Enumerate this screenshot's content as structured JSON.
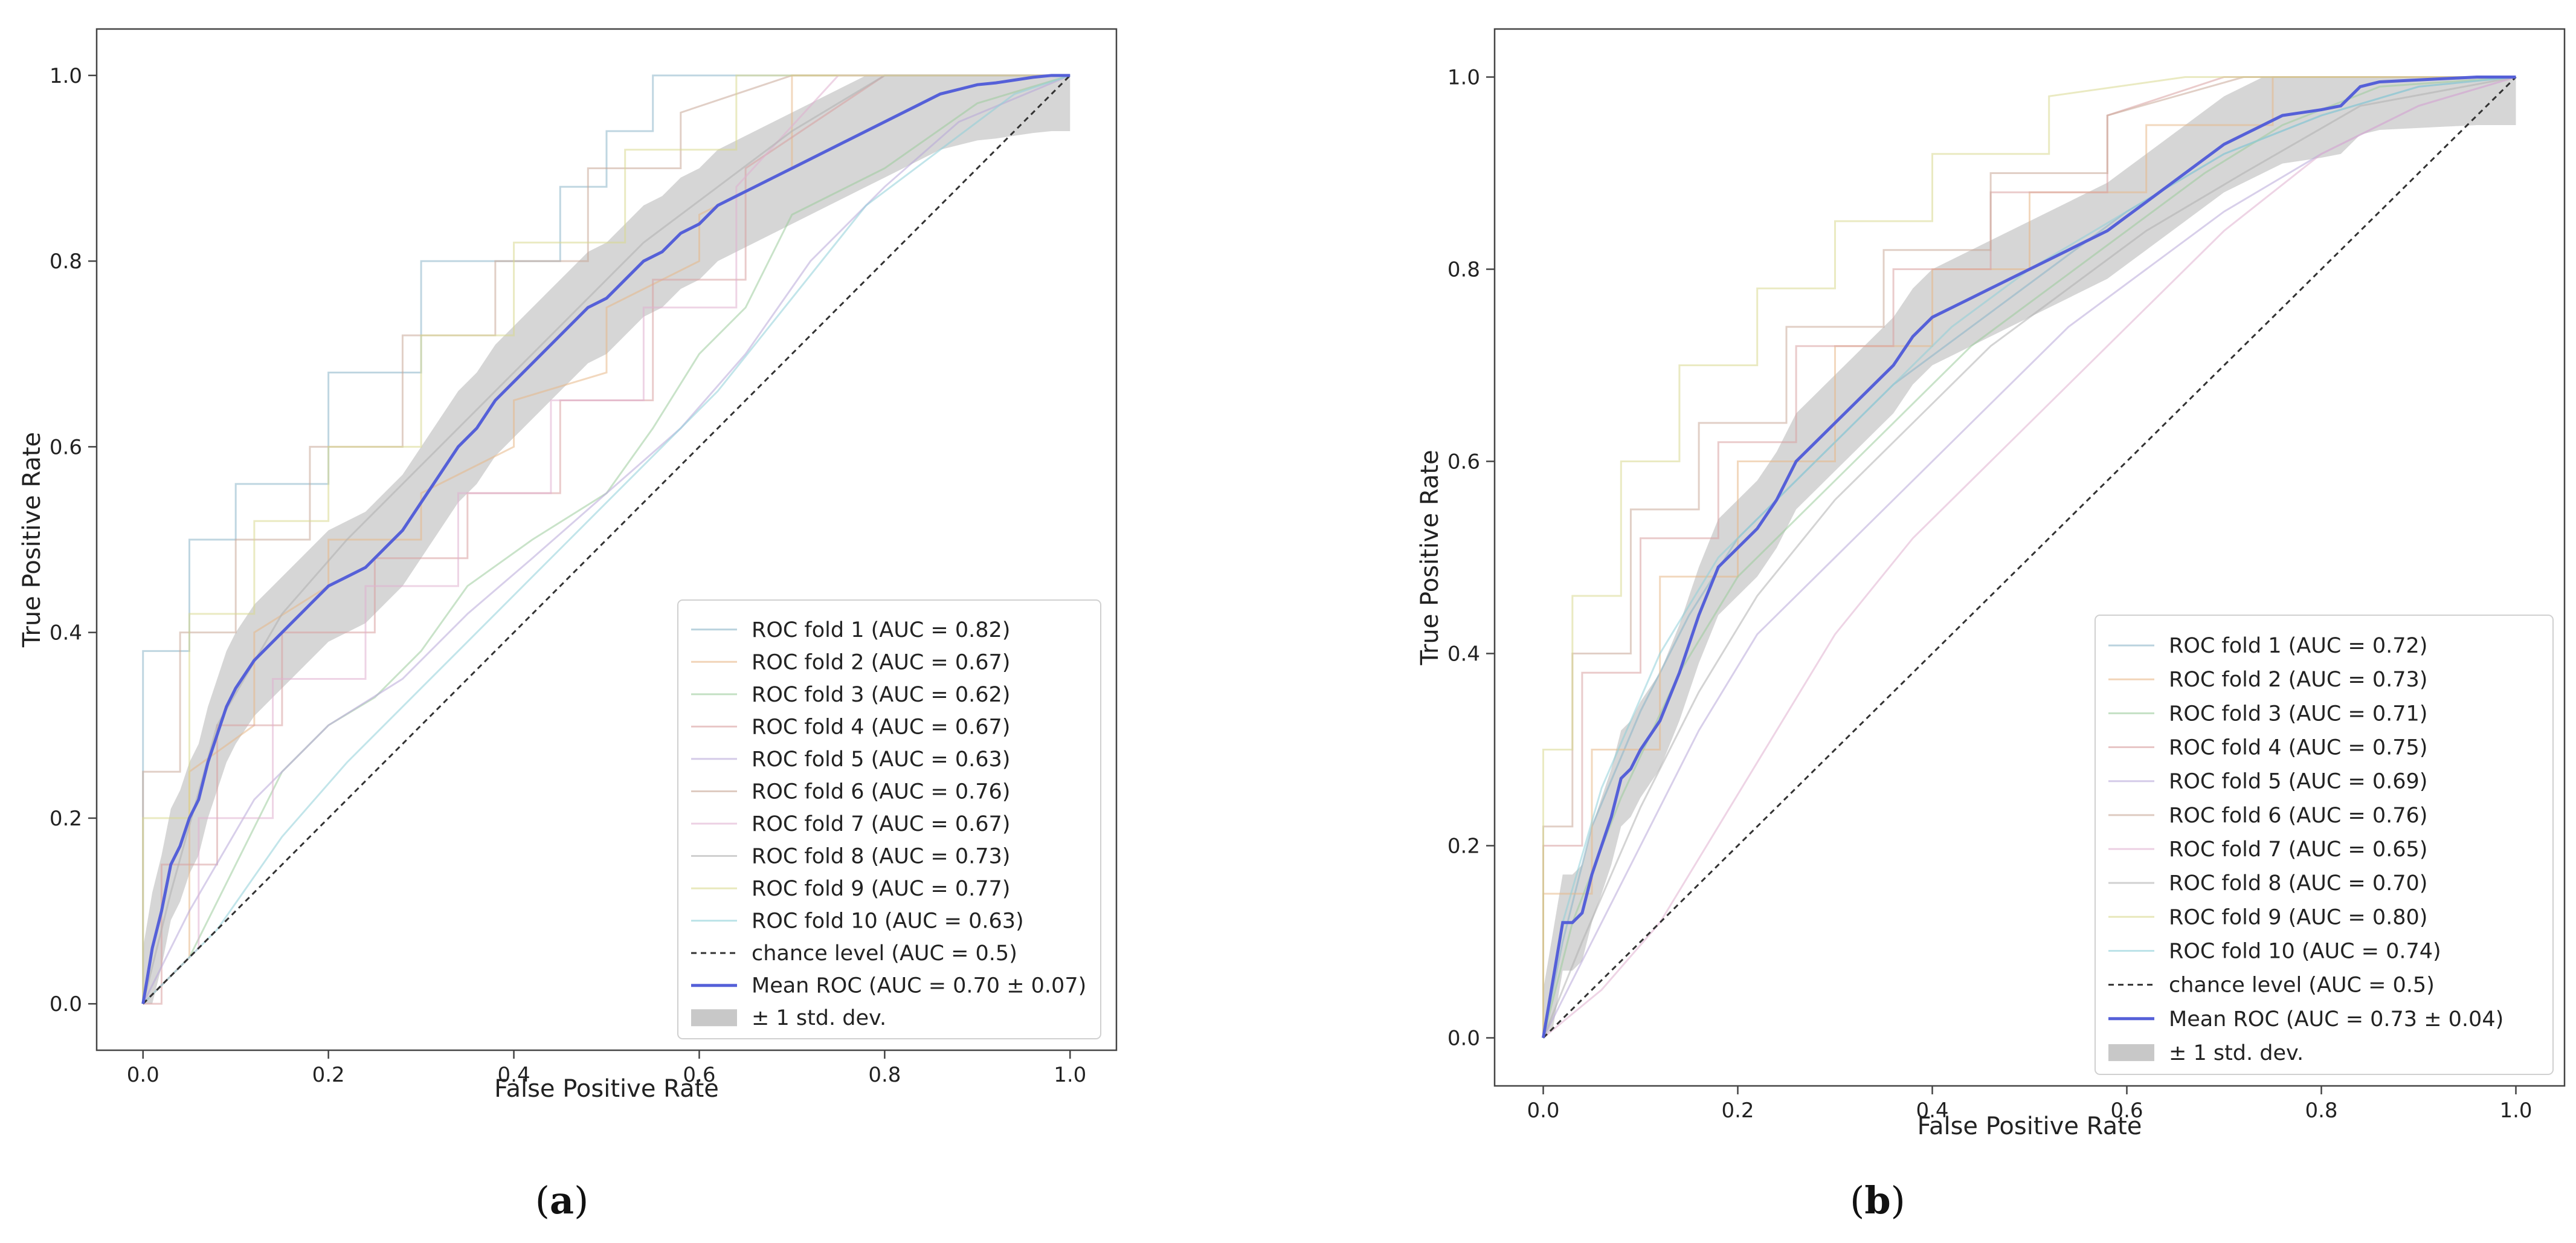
{
  "chart_data": [
    {
      "type": "line",
      "panel": "a",
      "caption_open": "(",
      "caption_letter": "a",
      "caption_close": ")",
      "xlabel": "False Positive Rate",
      "ylabel": "True Positive Rate",
      "xlim": [
        -0.05,
        1.05
      ],
      "ylim": [
        -0.05,
        1.05
      ],
      "xticks": [
        "0.0",
        "0.2",
        "0.4",
        "0.6",
        "0.8",
        "1.0"
      ],
      "yticks": [
        "0.0",
        "0.2",
        "0.4",
        "0.6",
        "0.8",
        "1.0"
      ],
      "legend_position": "lower-right",
      "folds": [
        {
          "label": "ROC fold 1 (AUC = 0.82)",
          "color": "#8ab4c8",
          "x": [
            0,
            0,
            0.05,
            0.05,
            0.1,
            0.1,
            0.2,
            0.2,
            0.3,
            0.3,
            0.45,
            0.45,
            0.5,
            0.5,
            0.55,
            0.55,
            0.62,
            0.62,
            1
          ],
          "y": [
            0,
            0.38,
            0.38,
            0.5,
            0.5,
            0.56,
            0.56,
            0.68,
            0.68,
            0.8,
            0.8,
            0.88,
            0.88,
            0.94,
            0.94,
            1,
            1,
            1,
            1
          ]
        },
        {
          "label": "ROC fold 2 (AUC = 0.67)",
          "color": "#e8b889",
          "x": [
            0,
            0.05,
            0.05,
            0.12,
            0.12,
            0.2,
            0.2,
            0.3,
            0.3,
            0.4,
            0.4,
            0.5,
            0.5,
            0.6,
            0.6,
            0.7,
            0.7,
            1
          ],
          "y": [
            0,
            0.05,
            0.25,
            0.3,
            0.4,
            0.45,
            0.5,
            0.5,
            0.55,
            0.6,
            0.65,
            0.68,
            0.75,
            0.8,
            0.85,
            0.9,
            1,
            1
          ]
        },
        {
          "label": "ROC fold 3 (AUC = 0.62)",
          "color": "#9ccc9c",
          "x": [
            0,
            0.05,
            0.1,
            0.15,
            0.2,
            0.25,
            0.3,
            0.35,
            0.42,
            0.5,
            0.55,
            0.6,
            0.65,
            0.7,
            0.8,
            0.9,
            1
          ],
          "y": [
            0,
            0.05,
            0.15,
            0.25,
            0.3,
            0.33,
            0.38,
            0.45,
            0.5,
            0.55,
            0.62,
            0.7,
            0.75,
            0.85,
            0.9,
            0.97,
            1
          ]
        },
        {
          "label": "ROC fold 4 (AUC = 0.67)",
          "color": "#d9a0a0",
          "x": [
            0,
            0.02,
            0.02,
            0.08,
            0.08,
            0.15,
            0.15,
            0.25,
            0.25,
            0.35,
            0.35,
            0.45,
            0.45,
            0.55,
            0.55,
            0.65,
            0.65,
            0.8,
            1
          ],
          "y": [
            0,
            0,
            0.15,
            0.15,
            0.3,
            0.3,
            0.4,
            0.4,
            0.48,
            0.48,
            0.55,
            0.55,
            0.65,
            0.65,
            0.78,
            0.78,
            0.9,
            1,
            1
          ]
        },
        {
          "label": "ROC fold 5 (AUC = 0.63)",
          "color": "#b8a8d8",
          "x": [
            0,
            0.05,
            0.12,
            0.2,
            0.28,
            0.35,
            0.42,
            0.5,
            0.58,
            0.65,
            0.72,
            0.8,
            0.88,
            1
          ],
          "y": [
            0,
            0.1,
            0.22,
            0.3,
            0.35,
            0.42,
            0.48,
            0.55,
            0.62,
            0.7,
            0.8,
            0.88,
            0.95,
            1
          ]
        },
        {
          "label": "ROC fold 6 (AUC = 0.76)",
          "color": "#c8a898",
          "x": [
            0,
            0,
            0.04,
            0.04,
            0.1,
            0.1,
            0.18,
            0.18,
            0.28,
            0.28,
            0.38,
            0.38,
            0.48,
            0.48,
            0.58,
            0.58,
            0.7,
            1
          ],
          "y": [
            0,
            0.25,
            0.25,
            0.4,
            0.4,
            0.5,
            0.5,
            0.6,
            0.6,
            0.72,
            0.72,
            0.8,
            0.8,
            0.9,
            0.9,
            0.96,
            1,
            1
          ]
        },
        {
          "label": "ROC fold 7 (AUC = 0.67)",
          "color": "#e0b0d0",
          "x": [
            0,
            0.06,
            0.06,
            0.14,
            0.14,
            0.24,
            0.24,
            0.34,
            0.34,
            0.44,
            0.44,
            0.54,
            0.54,
            0.64,
            0.64,
            0.75,
            1
          ],
          "y": [
            0,
            0.06,
            0.2,
            0.2,
            0.35,
            0.35,
            0.45,
            0.45,
            0.55,
            0.55,
            0.65,
            0.65,
            0.75,
            0.75,
            0.88,
            1,
            1
          ]
        },
        {
          "label": "ROC fold 8 (AUC = 0.73)",
          "color": "#b0b0b0",
          "x": [
            0,
            0.03,
            0.08,
            0.15,
            0.22,
            0.3,
            0.38,
            0.46,
            0.54,
            0.62,
            0.7,
            0.8,
            1
          ],
          "y": [
            0,
            0.12,
            0.3,
            0.42,
            0.5,
            0.58,
            0.66,
            0.74,
            0.82,
            0.88,
            0.94,
            1,
            1
          ]
        },
        {
          "label": "ROC fold 9 (AUC = 0.77)",
          "color": "#d8d890",
          "x": [
            0,
            0,
            0.05,
            0.05,
            0.12,
            0.12,
            0.2,
            0.2,
            0.3,
            0.3,
            0.4,
            0.4,
            0.52,
            0.52,
            0.64,
            0.64,
            1
          ],
          "y": [
            0,
            0.2,
            0.2,
            0.42,
            0.42,
            0.52,
            0.52,
            0.6,
            0.6,
            0.72,
            0.72,
            0.82,
            0.82,
            0.92,
            0.92,
            1,
            1
          ]
        },
        {
          "label": "ROC fold 10 (AUC = 0.63)",
          "color": "#90d0d8",
          "x": [
            0,
            0.08,
            0.15,
            0.22,
            0.3,
            0.38,
            0.46,
            0.54,
            0.62,
            0.7,
            0.78,
            0.86,
            0.94,
            1
          ],
          "y": [
            0,
            0.08,
            0.18,
            0.26,
            0.34,
            0.42,
            0.5,
            0.58,
            0.66,
            0.76,
            0.86,
            0.92,
            0.98,
            1
          ]
        }
      ],
      "chance": {
        "label": "chance level (AUC = 0.5)",
        "color": "#333333",
        "x": [
          0,
          1
        ],
        "y": [
          0,
          1
        ]
      },
      "mean": {
        "label": "Mean ROC (AUC = 0.70 ± 0.07)",
        "color": "#5560d8",
        "x": [
          0,
          0.01,
          0.02,
          0.03,
          0.04,
          0.05,
          0.06,
          0.07,
          0.08,
          0.09,
          0.1,
          0.12,
          0.14,
          0.16,
          0.18,
          0.2,
          0.22,
          0.24,
          0.26,
          0.28,
          0.3,
          0.32,
          0.34,
          0.36,
          0.38,
          0.4,
          0.42,
          0.44,
          0.46,
          0.48,
          0.5,
          0.52,
          0.54,
          0.56,
          0.58,
          0.6,
          0.62,
          0.64,
          0.66,
          0.68,
          0.7,
          0.72,
          0.74,
          0.76,
          0.78,
          0.8,
          0.82,
          0.84,
          0.86,
          0.88,
          0.9,
          0.92,
          0.94,
          0.96,
          0.98,
          1.0
        ],
        "y": [
          0,
          0.06,
          0.1,
          0.15,
          0.17,
          0.2,
          0.22,
          0.26,
          0.29,
          0.32,
          0.34,
          0.37,
          0.39,
          0.41,
          0.43,
          0.45,
          0.46,
          0.47,
          0.49,
          0.51,
          0.54,
          0.57,
          0.6,
          0.62,
          0.65,
          0.67,
          0.69,
          0.71,
          0.73,
          0.75,
          0.76,
          0.78,
          0.8,
          0.81,
          0.83,
          0.84,
          0.86,
          0.87,
          0.88,
          0.89,
          0.9,
          0.91,
          0.92,
          0.93,
          0.94,
          0.95,
          0.96,
          0.97,
          0.98,
          0.985,
          0.99,
          0.992,
          0.995,
          0.998,
          1,
          1
        ]
      },
      "std": {
        "label": "± 1 std. dev.",
        "color": "#c8c8c8",
        "delta": 0.06
      }
    },
    {
      "type": "line",
      "panel": "b",
      "caption_open": "(",
      "caption_letter": "b",
      "caption_close": ")",
      "xlabel": "False Positive Rate",
      "ylabel": "True Positive Rate",
      "xlim": [
        -0.05,
        1.05
      ],
      "ylim": [
        -0.05,
        1.05
      ],
      "xticks": [
        "0.0",
        "0.2",
        "0.4",
        "0.6",
        "0.8",
        "1.0"
      ],
      "yticks": [
        "0.0",
        "0.2",
        "0.4",
        "0.6",
        "0.8",
        "1.0"
      ],
      "legend_position": "lower-right",
      "folds": [
        {
          "label": "ROC fold 1 (AUC = 0.72)",
          "color": "#8ab4c8",
          "x": [
            0,
            0.02,
            0.05,
            0.1,
            0.15,
            0.2,
            0.28,
            0.36,
            0.44,
            0.52,
            0.6,
            0.7,
            0.8,
            0.9,
            1
          ],
          "y": [
            0,
            0.1,
            0.22,
            0.34,
            0.44,
            0.52,
            0.6,
            0.68,
            0.74,
            0.8,
            0.86,
            0.92,
            0.96,
            0.99,
            1
          ]
        },
        {
          "label": "ROC fold 2 (AUC = 0.73)",
          "color": "#e8b889",
          "x": [
            0,
            0,
            0.05,
            0.05,
            0.12,
            0.12,
            0.2,
            0.2,
            0.3,
            0.3,
            0.4,
            0.4,
            0.5,
            0.5,
            0.62,
            0.62,
            0.75,
            0.75,
            1
          ],
          "y": [
            0,
            0.15,
            0.15,
            0.3,
            0.3,
            0.48,
            0.48,
            0.6,
            0.6,
            0.72,
            0.72,
            0.8,
            0.8,
            0.88,
            0.88,
            0.95,
            0.95,
            1,
            1
          ]
        },
        {
          "label": "ROC fold 3 (AUC = 0.71)",
          "color": "#9ccc9c",
          "x": [
            0,
            0.03,
            0.08,
            0.14,
            0.2,
            0.28,
            0.36,
            0.44,
            0.52,
            0.6,
            0.68,
            0.76,
            0.86,
            1
          ],
          "y": [
            0,
            0.12,
            0.25,
            0.38,
            0.48,
            0.56,
            0.64,
            0.72,
            0.78,
            0.84,
            0.9,
            0.95,
            0.99,
            1
          ]
        },
        {
          "label": "ROC fold 4 (AUC = 0.75)",
          "color": "#d9a0a0",
          "x": [
            0,
            0,
            0.04,
            0.04,
            0.1,
            0.1,
            0.18,
            0.18,
            0.26,
            0.26,
            0.36,
            0.36,
            0.46,
            0.46,
            0.58,
            0.58,
            0.7,
            1
          ],
          "y": [
            0,
            0.2,
            0.2,
            0.38,
            0.38,
            0.52,
            0.52,
            0.62,
            0.62,
            0.72,
            0.72,
            0.8,
            0.8,
            0.88,
            0.88,
            0.96,
            1,
            1
          ]
        },
        {
          "label": "ROC fold 5 (AUC = 0.69)",
          "color": "#b8a8d8",
          "x": [
            0,
            0.05,
            0.1,
            0.16,
            0.22,
            0.3,
            0.38,
            0.46,
            0.54,
            0.62,
            0.7,
            0.8,
            0.9,
            1
          ],
          "y": [
            0,
            0.1,
            0.2,
            0.32,
            0.42,
            0.5,
            0.58,
            0.66,
            0.74,
            0.8,
            0.86,
            0.92,
            0.97,
            1
          ]
        },
        {
          "label": "ROC fold 6 (AUC = 0.76)",
          "color": "#c8a898",
          "x": [
            0,
            0,
            0.03,
            0.03,
            0.09,
            0.09,
            0.16,
            0.16,
            0.25,
            0.25,
            0.35,
            0.35,
            0.46,
            0.46,
            0.58,
            0.58,
            0.72,
            1
          ],
          "y": [
            0,
            0.22,
            0.22,
            0.4,
            0.4,
            0.55,
            0.55,
            0.64,
            0.64,
            0.74,
            0.74,
            0.82,
            0.82,
            0.9,
            0.9,
            0.96,
            1,
            1
          ]
        },
        {
          "label": "ROC fold 7 (AUC = 0.65)",
          "color": "#e0b0d0",
          "x": [
            0,
            0.06,
            0.12,
            0.18,
            0.24,
            0.3,
            0.38,
            0.46,
            0.54,
            0.62,
            0.7,
            0.8,
            0.9,
            1
          ],
          "y": [
            0,
            0.05,
            0.12,
            0.22,
            0.32,
            0.42,
            0.52,
            0.6,
            0.68,
            0.76,
            0.84,
            0.92,
            0.97,
            1
          ]
        },
        {
          "label": "ROC fold 8 (AUC = 0.70)",
          "color": "#b0b0b0",
          "x": [
            0,
            0.04,
            0.1,
            0.16,
            0.22,
            0.3,
            0.38,
            0.46,
            0.54,
            0.62,
            0.72,
            0.84,
            1
          ],
          "y": [
            0,
            0.1,
            0.24,
            0.36,
            0.46,
            0.56,
            0.64,
            0.72,
            0.78,
            0.84,
            0.9,
            0.97,
            1
          ]
        },
        {
          "label": "ROC fold 9 (AUC = 0.80)",
          "color": "#d8d890",
          "x": [
            0,
            0,
            0.03,
            0.03,
            0.08,
            0.08,
            0.14,
            0.14,
            0.22,
            0.22,
            0.3,
            0.3,
            0.4,
            0.4,
            0.52,
            0.52,
            0.66,
            1
          ],
          "y": [
            0,
            0.3,
            0.3,
            0.46,
            0.46,
            0.6,
            0.6,
            0.7,
            0.7,
            0.78,
            0.78,
            0.85,
            0.85,
            0.92,
            0.92,
            0.98,
            1,
            1
          ]
        },
        {
          "label": "ROC fold 10 (AUC = 0.74)",
          "color": "#90d0d8",
          "x": [
            0,
            0.02,
            0.06,
            0.12,
            0.18,
            0.26,
            0.34,
            0.42,
            0.5,
            0.6,
            0.7,
            0.8,
            0.9,
            1
          ],
          "y": [
            0,
            0.12,
            0.26,
            0.4,
            0.5,
            0.58,
            0.66,
            0.74,
            0.8,
            0.86,
            0.92,
            0.96,
            0.99,
            1
          ]
        }
      ],
      "chance": {
        "label": "chance level (AUC = 0.5)",
        "color": "#333333",
        "x": [
          0,
          1
        ],
        "y": [
          0,
          1
        ]
      },
      "mean": {
        "label": "Mean ROC (AUC = 0.73 ± 0.04)",
        "color": "#5560d8",
        "x": [
          0,
          0.01,
          0.02,
          0.03,
          0.04,
          0.05,
          0.06,
          0.07,
          0.08,
          0.09,
          0.1,
          0.12,
          0.14,
          0.16,
          0.18,
          0.2,
          0.22,
          0.24,
          0.26,
          0.28,
          0.3,
          0.32,
          0.34,
          0.36,
          0.38,
          0.4,
          0.42,
          0.44,
          0.46,
          0.48,
          0.5,
          0.52,
          0.54,
          0.56,
          0.58,
          0.6,
          0.62,
          0.64,
          0.66,
          0.68,
          0.7,
          0.72,
          0.74,
          0.76,
          0.78,
          0.8,
          0.82,
          0.84,
          0.86,
          0.88,
          0.9,
          0.92,
          0.94,
          0.96,
          0.98,
          1.0
        ],
        "y": [
          0,
          0.06,
          0.12,
          0.12,
          0.13,
          0.17,
          0.2,
          0.23,
          0.27,
          0.28,
          0.3,
          0.33,
          0.38,
          0.44,
          0.49,
          0.51,
          0.53,
          0.56,
          0.6,
          0.62,
          0.64,
          0.66,
          0.68,
          0.7,
          0.73,
          0.75,
          0.76,
          0.77,
          0.78,
          0.79,
          0.8,
          0.81,
          0.82,
          0.83,
          0.84,
          0.855,
          0.87,
          0.885,
          0.9,
          0.915,
          0.93,
          0.94,
          0.95,
          0.96,
          0.963,
          0.966,
          0.97,
          0.99,
          0.995,
          0.996,
          0.997,
          0.998,
          0.999,
          1,
          1,
          1
        ]
      },
      "std": {
        "label": "± 1 std. dev.",
        "color": "#c8c8c8",
        "delta": 0.05
      }
    }
  ]
}
